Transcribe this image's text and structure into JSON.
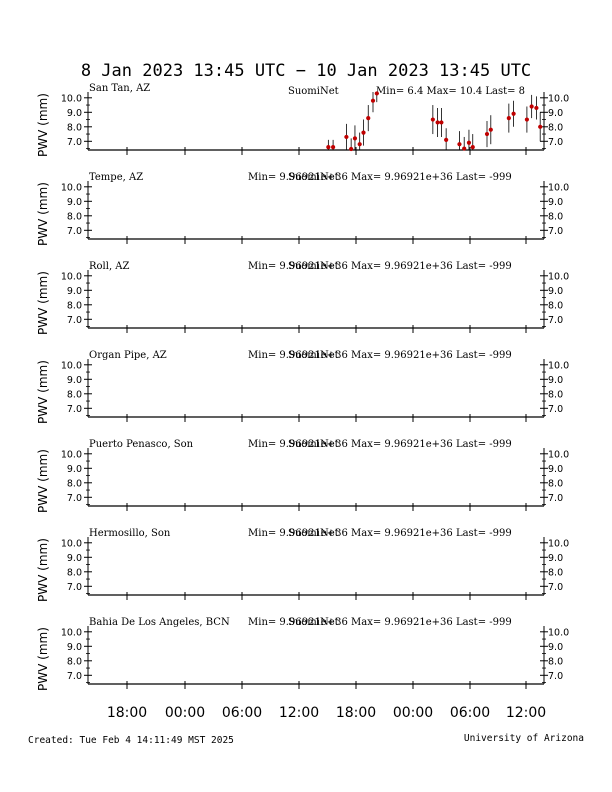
{
  "title": "8 Jan 2023 13:45 UTC − 10 Jan 2023 13:45 UTC",
  "created": "Created: Tue Feb  4 14:11:49 MST 2025",
  "credit": "University of Arizona",
  "ylabel": "PWV (mm)",
  "x_ticks": [
    "18:00",
    "00:00",
    "06:00",
    "12:00",
    "18:00",
    "00:00",
    "06:00",
    "12:00"
  ],
  "y_ticks": [
    "10.0",
    "9.0",
    "8.0",
    "7.0"
  ],
  "chart_data": {
    "type": "scatter",
    "x_unit": "hours since 8 Jan 2023 13:45 UTC",
    "ylim": [
      6.4,
      10.4
    ],
    "xlim": [
      0,
      48
    ],
    "panels": [
      {
        "station": "San Tan, AZ",
        "source": "SuomiNet",
        "stats": "Min= 6.4 Max= 10.4 Last= 8",
        "points": [
          {
            "x": 25.3,
            "y": 6.6,
            "err": 0.5
          },
          {
            "x": 25.8,
            "y": 6.6,
            "err": 0.5
          },
          {
            "x": 27.2,
            "y": 7.3,
            "err": 0.9
          },
          {
            "x": 27.7,
            "y": 6.4,
            "err": 0.8
          },
          {
            "x": 28.1,
            "y": 7.2,
            "err": 0.9
          },
          {
            "x": 28.6,
            "y": 6.8,
            "err": 0.8
          },
          {
            "x": 29.0,
            "y": 7.6,
            "err": 0.9
          },
          {
            "x": 29.5,
            "y": 8.6,
            "err": 0.9
          },
          {
            "x": 30.0,
            "y": 9.8,
            "err": 0.8
          },
          {
            "x": 30.4,
            "y": 10.3,
            "err": 0.6
          },
          {
            "x": 36.3,
            "y": 8.5,
            "err": 1.0
          },
          {
            "x": 36.8,
            "y": 8.3,
            "err": 1.0
          },
          {
            "x": 37.2,
            "y": 8.3,
            "err": 1.0
          },
          {
            "x": 37.7,
            "y": 7.1,
            "err": 0.8
          },
          {
            "x": 39.1,
            "y": 6.8,
            "err": 0.9
          },
          {
            "x": 39.6,
            "y": 6.5,
            "err": 0.8
          },
          {
            "x": 40.1,
            "y": 6.9,
            "err": 0.9
          },
          {
            "x": 40.5,
            "y": 6.6,
            "err": 0.9
          },
          {
            "x": 42.0,
            "y": 7.5,
            "err": 0.9
          },
          {
            "x": 42.4,
            "y": 7.8,
            "err": 1.0
          },
          {
            "x": 44.3,
            "y": 8.6,
            "err": 1.0
          },
          {
            "x": 44.8,
            "y": 8.9,
            "err": 0.9
          },
          {
            "x": 46.2,
            "y": 8.5,
            "err": 0.9
          },
          {
            "x": 46.7,
            "y": 9.4,
            "err": 0.8
          },
          {
            "x": 47.2,
            "y": 9.3,
            "err": 0.8
          },
          {
            "x": 47.6,
            "y": 8.0,
            "err": 1.0
          }
        ]
      },
      {
        "station": "Tempe, AZ",
        "source": "SuomiNet",
        "stats": "Min= 9.96921e+36 Max= 9.96921e+36 Last= -999",
        "points": []
      },
      {
        "station": "Roll, AZ",
        "source": "SuomiNet",
        "stats": "Min= 9.96921e+36 Max= 9.96921e+36 Last= -999",
        "points": []
      },
      {
        "station": "Organ Pipe, AZ",
        "source": "SuomiNet",
        "stats": "Min= 9.96921e+36 Max= 9.96921e+36 Last= -999",
        "points": []
      },
      {
        "station": "Puerto Penasco, Son",
        "source": "SuomiNet",
        "stats": "Min= 9.96921e+36 Max= 9.96921e+36 Last= -999",
        "points": []
      },
      {
        "station": "Hermosillo, Son",
        "source": "SuomiNet",
        "stats": "Min= 9.96921e+36 Max= 9.96921e+36 Last= -999",
        "points": []
      },
      {
        "station": "Bahia De Los Angeles, BCN",
        "source": "SuomiNet",
        "stats": "Min= 9.96921e+36 Max= 9.96921e+36 Last= -999",
        "points": []
      }
    ]
  }
}
